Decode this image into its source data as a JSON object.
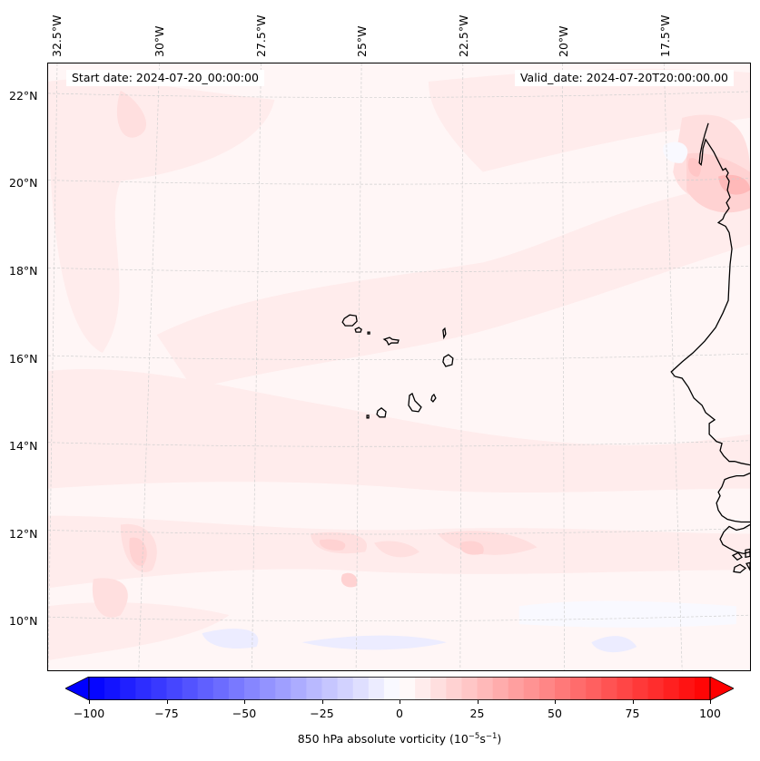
{
  "map": {
    "projection_note": "Lambert-style conic view of the tropical East Atlantic / West Africa coast",
    "lon_labels": [
      "32.5°W",
      "30°W",
      "27.5°W",
      "25°W",
      "22.5°W",
      "20°W",
      "17.5°W"
    ],
    "lat_labels": [
      "22°N",
      "20°N",
      "18°N",
      "16°N",
      "14°N",
      "12°N",
      "10°N"
    ],
    "annotations": {
      "start_date": "Start date: 2024-07-20_00:00:00",
      "valid_date": "Valid_date: 2024-07-20T20:00:00.00"
    },
    "gridlines": "dashed light gray",
    "features": [
      "Cape Verde islands",
      "West African coastline (Mauritania, Senegal, Gambia, Guinea-Bissau)"
    ]
  },
  "chart_data": {
    "type": "heatmap",
    "title": "",
    "variable": "850 hPa absolute vorticity",
    "units": "10^-5 s^-1",
    "colormap": "bwr",
    "color_range": [
      -100,
      100
    ],
    "levels_step": 5,
    "extend": "both",
    "colorbar": {
      "orientation": "horizontal",
      "placement": "bottom",
      "ticks": [
        -100,
        -75,
        -50,
        -25,
        0,
        25,
        50,
        75,
        100
      ],
      "tick_labels": [
        "−100",
        "−75",
        "−50",
        "−25",
        "0",
        "25",
        "50",
        "75",
        "100"
      ],
      "label_main": "850 hPa absolute vorticity (10",
      "label_exp1": "−5",
      "label_mid": "s",
      "label_exp2": "−1",
      "label_end": ")"
    },
    "field_summary": {
      "background_value_range": [
        0,
        10
      ],
      "notable_maxima": [
        {
          "location": "off Mauritanian coast ~20°N 16.5°W",
          "approx_value": 30
        },
        {
          "location": "~11.5°N 30°W",
          "approx_value": 25
        },
        {
          "location": "~11.5°N 25.5°W",
          "approx_value": 20
        },
        {
          "location": "~11.3°N 22°W",
          "approx_value": 25
        },
        {
          "location": "~11°N 25°W",
          "approx_value": 20
        }
      ],
      "notable_minima": [
        {
          "location": "~9.5°N 27-24°W",
          "approx_value": -10
        }
      ]
    }
  }
}
